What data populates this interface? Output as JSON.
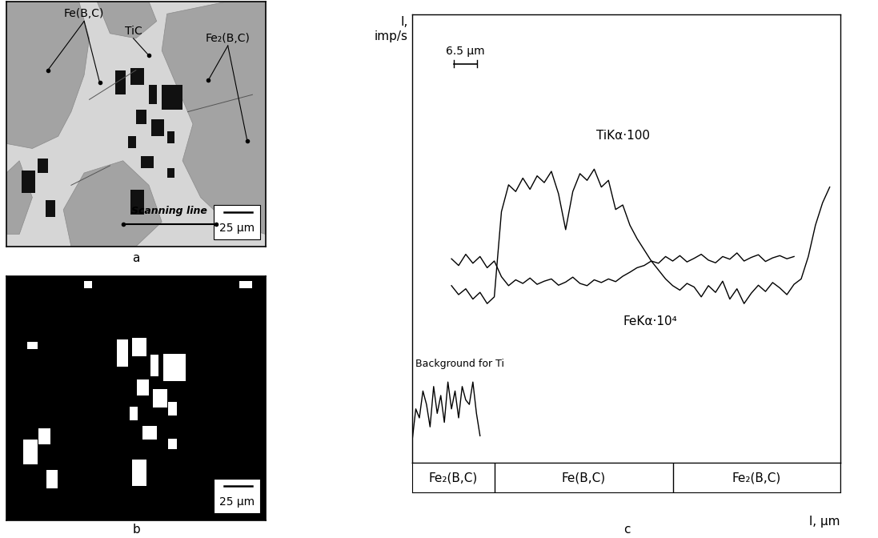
{
  "panels": {
    "a": {
      "label": "a",
      "phase_labels": [
        "Fe(B,C)",
        "TiC",
        "Fe₂(B,C)"
      ],
      "scale_bar": "25 µm",
      "scanning_line": "Scanning line"
    },
    "b": {
      "label": "b",
      "scale_bar": "25 µm"
    }
  },
  "chart_data": {
    "type": "line",
    "panel_label": "c",
    "y_label": "I,\nimp/s",
    "x_label": "l, µm",
    "xlim": [
      0,
      120
    ],
    "ylim": [
      0,
      100
    ],
    "tick_labels": false,
    "scale_bar": {
      "label": "6.5 µm",
      "length": 6.5
    },
    "series": [
      {
        "name": "TiKα·100",
        "color": "#000000",
        "x": [
          11,
          13,
          15,
          17,
          19,
          21,
          23,
          25,
          27,
          29,
          31,
          33,
          35,
          37,
          39,
          41,
          43,
          45,
          47,
          49,
          51,
          53,
          55,
          57,
          59,
          61,
          63,
          65,
          67,
          69,
          71,
          73,
          75,
          77,
          79,
          81,
          83,
          85,
          87,
          89,
          91,
          93,
          95,
          97,
          99,
          101,
          103,
          105,
          107,
          109,
          111,
          113,
          115,
          117
        ],
        "values": [
          39.5,
          37.5,
          38.8,
          36.5,
          38.0,
          35.5,
          37.0,
          56.0,
          62.0,
          60.5,
          63.5,
          61.0,
          64.0,
          62.5,
          65.0,
          60.0,
          52.0,
          60.5,
          64.5,
          63.0,
          65.5,
          61.5,
          63.0,
          56.5,
          57.5,
          53.0,
          50.0,
          47.5,
          45.0,
          43.0,
          41.0,
          39.5,
          38.5,
          40.0,
          39.2,
          37.0,
          39.5,
          38.0,
          40.5,
          36.5,
          38.8,
          35.5,
          37.8,
          39.6,
          38.2,
          40.2,
          39.0,
          37.5,
          39.8,
          41.0,
          46.0,
          53.0,
          58.0,
          61.5
        ]
      },
      {
        "name": "FeKα·10⁴",
        "color": "#000000",
        "x": [
          11,
          13,
          15,
          17,
          19,
          21,
          23,
          25,
          27,
          29,
          31,
          33,
          35,
          37,
          39,
          41,
          43,
          45,
          47,
          49,
          51,
          53,
          55,
          57,
          59,
          61,
          63,
          65,
          67,
          69,
          71,
          73,
          75,
          77,
          79,
          81,
          83,
          85,
          87,
          89,
          91,
          93,
          95,
          97,
          99,
          101,
          103,
          105,
          107
        ],
        "values": [
          45.5,
          44.0,
          46.5,
          44.5,
          46.0,
          43.5,
          45.0,
          41.5,
          39.5,
          40.8,
          40.0,
          41.2,
          39.8,
          40.5,
          41.0,
          39.6,
          40.3,
          41.4,
          40.0,
          39.5,
          40.8,
          40.2,
          41.0,
          40.4,
          41.6,
          42.5,
          43.5,
          44.0,
          45.0,
          44.5,
          46.0,
          45.0,
          46.2,
          44.8,
          45.6,
          46.5,
          45.2,
          44.6,
          46.0,
          45.4,
          46.8,
          45.0,
          45.8,
          46.4,
          44.9,
          45.7,
          46.2,
          45.5,
          46.0
        ]
      },
      {
        "name": "Background for Ti",
        "color": "#000000",
        "x": [
          0,
          1,
          2,
          3,
          4,
          5,
          6,
          7,
          8,
          9,
          10,
          11,
          12,
          13,
          14,
          15,
          16,
          17,
          18,
          19
        ],
        "values": [
          5,
          12,
          10,
          16,
          13,
          8,
          17,
          11,
          15,
          9,
          18,
          12,
          16,
          10,
          17,
          14,
          13,
          18,
          11,
          6
        ]
      }
    ],
    "phases": [
      {
        "label": "Fe₂(B,C)",
        "start": 0,
        "end": 23
      },
      {
        "label": "Fe(B,C)",
        "start": 23,
        "end": 73
      },
      {
        "label": "Fe₂(B,C)",
        "start": 73,
        "end": 120
      }
    ]
  }
}
